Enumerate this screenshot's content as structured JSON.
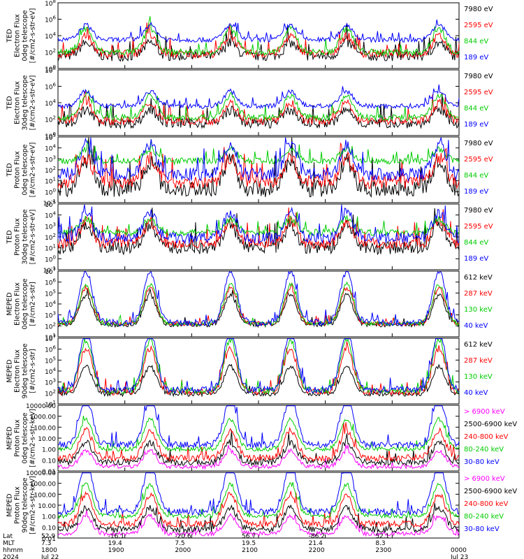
{
  "chart_data": [
    {
      "type": "line",
      "ylabel_lines": [
        "TED",
        "Electron Flux",
        "0deg telescope",
        "[#/cm2-s-str-eV]"
      ],
      "y_ticks": [
        "10^0",
        "10^2",
        "10^4",
        "10^6",
        "10^8"
      ],
      "ylim": [
        1,
        100000000
      ],
      "yscale": "log",
      "series": [
        {
          "name": "7980 eV",
          "color": "#000000",
          "base": 1.5,
          "storm": 0.9,
          "noise": 0.6
        },
        {
          "name": "2595 eV",
          "color": "#ff0000",
          "base": 1.8,
          "storm": 1.2,
          "noise": 0.5
        },
        {
          "name": "844 eV",
          "color": "#00cc00",
          "base": 2.0,
          "storm": 1.6,
          "noise": 0.4
        },
        {
          "name": "189 eV",
          "color": "#0000ff",
          "base": 3.5,
          "storm": 1.0,
          "noise": 0.3
        }
      ]
    },
    {
      "type": "line",
      "ylabel_lines": [
        "TED",
        "Electron Flux",
        "30deg telescope",
        "[#/cm2-s-str-eV]"
      ],
      "y_ticks": [
        "10^0",
        "10^2",
        "10^4",
        "10^6",
        "10^8"
      ],
      "ylim": [
        1,
        100000000
      ],
      "yscale": "log",
      "series": [
        {
          "name": "7980 eV",
          "color": "#000000",
          "base": 1.5,
          "storm": 0.9,
          "noise": 0.6
        },
        {
          "name": "2595 eV",
          "color": "#ff0000",
          "base": 1.8,
          "storm": 1.2,
          "noise": 0.5
        },
        {
          "name": "844 eV",
          "color": "#00cc00",
          "base": 2.2,
          "storm": 1.5,
          "noise": 0.4
        },
        {
          "name": "189 eV",
          "color": "#0000ff",
          "base": 3.6,
          "storm": 1.0,
          "noise": 0.3
        }
      ]
    },
    {
      "type": "line",
      "ylabel_lines": [
        "TED",
        "Proton Flux",
        "0deg telescope",
        "[#/cm2-s-str-eV]"
      ],
      "y_ticks": [
        "10^-1",
        "10^0",
        "10^1",
        "10^2",
        "10^3",
        "10^4",
        "10^5"
      ],
      "ylim": [
        0.1,
        100000
      ],
      "yscale": "log",
      "series": [
        {
          "name": "7980 eV",
          "color": "#000000",
          "base": 0.3,
          "storm": 1.4,
          "noise": 0.8
        },
        {
          "name": "2595 eV",
          "color": "#ff0000",
          "base": 0.9,
          "storm": 1.2,
          "noise": 0.6
        },
        {
          "name": "844 eV",
          "color": "#00cc00",
          "base": 2.8,
          "storm": 0.6,
          "noise": 0.3
        },
        {
          "name": "189 eV",
          "color": "#0000ff",
          "base": 1.6,
          "storm": 1.5,
          "noise": 0.6
        }
      ]
    },
    {
      "type": "line",
      "ylabel_lines": [
        "TED",
        "Proton Flux",
        "30deg telescope",
        "[#/cm2-s-str-eV]"
      ],
      "y_ticks": [
        "10^-1",
        "10^0",
        "10^1",
        "10^2",
        "10^3",
        "10^4",
        "10^5"
      ],
      "ylim": [
        0.1,
        100000
      ],
      "yscale": "log",
      "series": [
        {
          "name": "7980 eV",
          "color": "#000000",
          "base": 1.0,
          "storm": 1.2,
          "noise": 0.6
        },
        {
          "name": "2595 eV",
          "color": "#ff0000",
          "base": 1.4,
          "storm": 1.1,
          "noise": 0.5
        },
        {
          "name": "844 eV",
          "color": "#00cc00",
          "base": 2.4,
          "storm": 0.7,
          "noise": 0.3
        },
        {
          "name": "189 eV",
          "color": "#0000ff",
          "base": 1.9,
          "storm": 1.3,
          "noise": 0.5
        }
      ]
    },
    {
      "type": "line",
      "ylabel_lines": [
        "MEPED",
        "Electron Flux",
        "0deg telescope",
        "[#/cm2-s-str]"
      ],
      "y_ticks": [
        "10^1",
        "10^2",
        "10^3",
        "10^4",
        "10^5",
        "10^6",
        "10^7"
      ],
      "ylim": [
        10,
        10000000
      ],
      "yscale": "log",
      "series": [
        {
          "name": "612 keV",
          "color": "#000000",
          "base": 2.1,
          "storm": 1.5,
          "noise": 0.2
        },
        {
          "name": "287 keV",
          "color": "#ff0000",
          "base": 2.2,
          "storm": 1.8,
          "noise": 0.2
        },
        {
          "name": "130 keV",
          "color": "#00cc00",
          "base": 2.2,
          "storm": 2.0,
          "noise": 0.2
        },
        {
          "name": "40 keV",
          "color": "#0000ff",
          "base": 2.3,
          "storm": 2.6,
          "noise": 0.3
        }
      ]
    },
    {
      "type": "line",
      "ylabel_lines": [
        "MEPED",
        "Electron Flux",
        "90deg telescope",
        "[#/cm2-s-str]"
      ],
      "y_ticks": [
        "10^1",
        "10^2",
        "10^3",
        "10^4",
        "10^5",
        "10^6",
        "10^7"
      ],
      "ylim": [
        10,
        10000000
      ],
      "yscale": "log",
      "series": [
        {
          "name": "612 keV",
          "color": "#000000",
          "base": 1.9,
          "storm": 1.4,
          "noise": 0.2
        },
        {
          "name": "287 keV",
          "color": "#ff0000",
          "base": 2.1,
          "storm": 2.2,
          "noise": 0.3
        },
        {
          "name": "130 keV",
          "color": "#00cc00",
          "base": 2.2,
          "storm": 2.6,
          "noise": 0.3
        },
        {
          "name": "40 keV",
          "color": "#0000ff",
          "base": 2.3,
          "storm": 3.0,
          "noise": 0.3
        }
      ]
    },
    {
      "type": "line",
      "ylabel_lines": [
        "MEPED",
        "Proton Flux",
        "0deg telescope",
        "[#/cm2-s-str-keV]"
      ],
      "y_ticks": [
        "0.01",
        "0.10",
        "1.00",
        "10.00",
        "100.00",
        "1000.00",
        "10000.00"
      ],
      "ylim": [
        0.01,
        10000
      ],
      "yscale": "log",
      "series": [
        {
          "name": "> 6900 keV",
          "color": "#ff00ff",
          "base": -1.6,
          "storm": 0.8,
          "noise": 0.2
        },
        {
          "name": "2500-6900 keV",
          "color": "#000000",
          "base": -1.2,
          "storm": 1.0,
          "noise": 0.3
        },
        {
          "name": "240-800 keV",
          "color": "#ff0000",
          "base": -0.8,
          "storm": 1.4,
          "noise": 0.3
        },
        {
          "name": "80-240 keV",
          "color": "#00cc00",
          "base": 0.0,
          "storm": 1.5,
          "noise": 0.2
        },
        {
          "name": "30-80 keV",
          "color": "#0000ff",
          "base": 0.4,
          "storm": 2.4,
          "noise": 0.3
        }
      ]
    },
    {
      "type": "line",
      "ylabel_lines": [
        "MEPED",
        "Proton Flux",
        "90deg telescope",
        "[#/cm2-s-str-keV]"
      ],
      "y_ticks": [
        "0.01",
        "0.10",
        "1.00",
        "10.00",
        "100.00",
        "1000.00",
        "10000.00"
      ],
      "ylim": [
        0.01,
        10000
      ],
      "yscale": "log",
      "series": [
        {
          "name": "> 6900 keV",
          "color": "#ff00ff",
          "base": -1.6,
          "storm": 0.9,
          "noise": 0.2
        },
        {
          "name": "2500-6900 keV",
          "color": "#000000",
          "base": -1.2,
          "storm": 1.1,
          "noise": 0.3
        },
        {
          "name": "240-800 keV",
          "color": "#ff0000",
          "base": -0.7,
          "storm": 1.5,
          "noise": 0.3
        },
        {
          "name": "80-240 keV",
          "color": "#00cc00",
          "base": 0.0,
          "storm": 1.6,
          "noise": 0.2
        },
        {
          "name": "30-80 keV",
          "color": "#0000ff",
          "base": 0.4,
          "storm": 2.5,
          "noise": 0.3
        }
      ]
    }
  ],
  "time_axis": {
    "row_labels": [
      "Lat",
      "MLT",
      "hhmm",
      "2024"
    ],
    "columns": [
      {
        "lat": "52.9",
        "mlt": "7.3",
        "hhmm": "1800",
        "date": "Jul 22"
      },
      {
        "lat": "-16.1",
        "mlt": "19.4",
        "hhmm": "1900",
        "date": ""
      },
      {
        "lat": "-20.6",
        "mlt": "7.5",
        "hhmm": "2000",
        "date": ""
      },
      {
        "lat": "56.7",
        "mlt": "19.5",
        "hhmm": "2100",
        "date": ""
      },
      {
        "lat": "-86.2",
        "mlt": "21.4",
        "hhmm": "2200",
        "date": ""
      },
      {
        "lat": "52.1",
        "mlt": "8.3",
        "hhmm": "2300",
        "date": ""
      },
      {
        "lat": "",
        "mlt": "",
        "hhmm": "0000",
        "date": "Jul 23"
      }
    ]
  }
}
